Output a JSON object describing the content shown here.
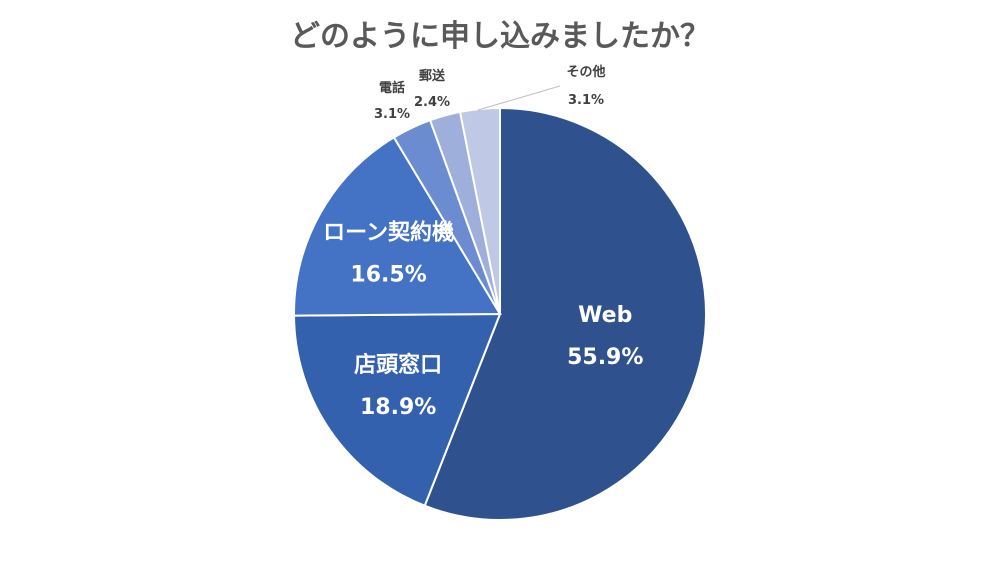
{
  "chart_data": {
    "type": "pie",
    "title": "どのように申し込みましたか？",
    "slices": [
      {
        "label": "Web",
        "value": 55.9,
        "value_text": "55.9%",
        "color": "#2F528F"
      },
      {
        "label": "店頭窓口",
        "value": 18.9,
        "value_text": "18.9%",
        "color": "#3461AE"
      },
      {
        "label": "ローン契約機",
        "value": 16.5,
        "value_text": "16.5%",
        "color": "#4472C4"
      },
      {
        "label": "電話",
        "value": 3.1,
        "value_text": "3.1%",
        "color": "#6B8CD0"
      },
      {
        "label": "郵送",
        "value": 2.4,
        "value_text": "2.4%",
        "color": "#9EAFDB"
      },
      {
        "label": "その他",
        "value": 3.1,
        "value_text": "3.1%",
        "color": "#BFC9E6"
      }
    ],
    "legend": "none"
  }
}
